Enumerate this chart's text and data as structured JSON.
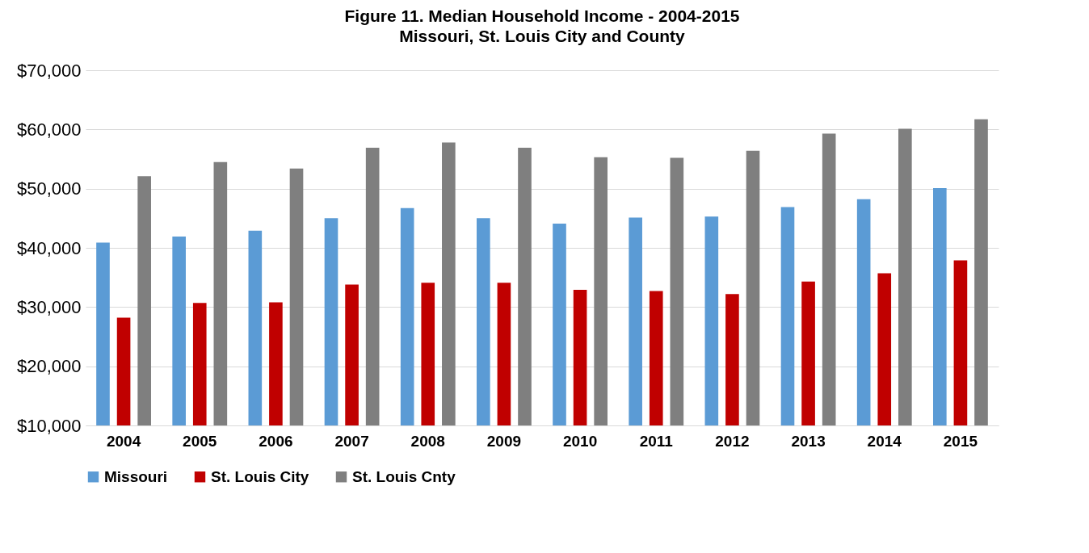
{
  "chart_data": {
    "type": "bar",
    "title": "Figure 11. Median Household Income - 2004-2015",
    "subtitle": "Missouri, St. Louis City and County",
    "categories": [
      "2004",
      "2005",
      "2006",
      "2007",
      "2008",
      "2009",
      "2010",
      "2011",
      "2012",
      "2013",
      "2014",
      "2015"
    ],
    "series": [
      {
        "name": "Missouri",
        "color": "#5b9bd5",
        "values": [
          40900,
          41900,
          42900,
          45000,
          46700,
          45000,
          44100,
          45100,
          45300,
          46900,
          48200,
          50100
        ]
      },
      {
        "name": "St. Louis City",
        "color": "#c00000",
        "values": [
          28200,
          30700,
          30800,
          33800,
          34100,
          34100,
          32900,
          32700,
          32200,
          34300,
          35700,
          37900
        ]
      },
      {
        "name": "St. Louis Cnty",
        "color": "#7f7f7f",
        "values": [
          52100,
          54500,
          53400,
          56900,
          57800,
          56900,
          55300,
          55200,
          56400,
          59300,
          60100,
          61700
        ]
      }
    ],
    "ylim": [
      10000,
      70000
    ],
    "yticks": [
      {
        "value": 10000,
        "label": "$10,000"
      },
      {
        "value": 20000,
        "label": "$20,000"
      },
      {
        "value": 30000,
        "label": "$30,000"
      },
      {
        "value": 40000,
        "label": "$40,000"
      },
      {
        "value": 50000,
        "label": "$50,000"
      },
      {
        "value": 60000,
        "label": "$60,000"
      },
      {
        "value": 70000,
        "label": "$70,000"
      }
    ],
    "grid": "y",
    "legend": "bottom"
  }
}
